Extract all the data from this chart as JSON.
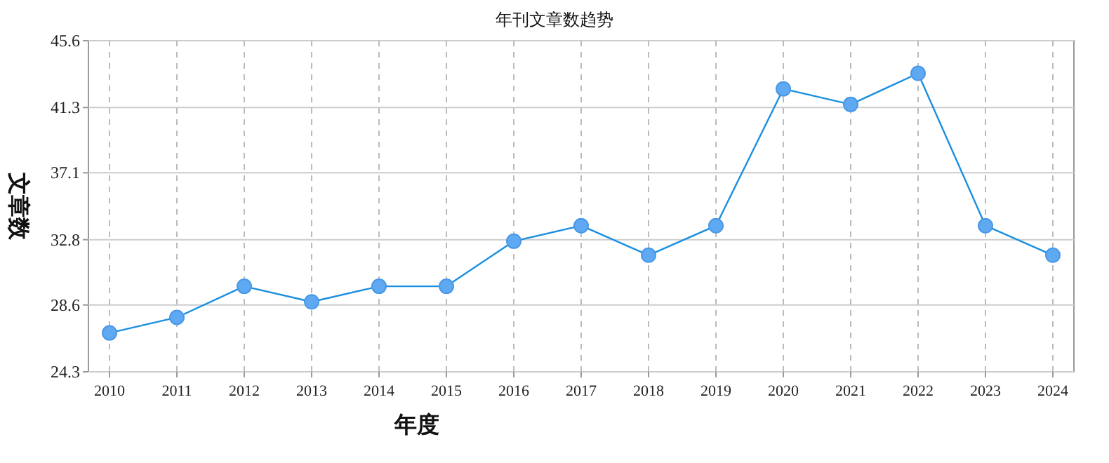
{
  "chart_data": {
    "type": "line",
    "title": "年刊文章数趋势",
    "xlabel": "年度",
    "ylabel": "文章数",
    "categories": [
      "2010",
      "2011",
      "2012",
      "2013",
      "2014",
      "2015",
      "2016",
      "2017",
      "2018",
      "2019",
      "2020",
      "2021",
      "2022",
      "2023",
      "2024"
    ],
    "series": [
      {
        "color": "#1a8fe0",
        "values": [
          26.8,
          27.8,
          29.8,
          28.8,
          29.8,
          29.8,
          32.7,
          33.7,
          31.8,
          33.7,
          42.5,
          41.5,
          43.5,
          33.7,
          31.8
        ]
      }
    ],
    "ylim": [
      24.3,
      45.6
    ],
    "yticks": [
      24.3,
      28.6,
      32.8,
      37.1,
      41.3,
      45.6
    ],
    "grid": true,
    "marker": "circle"
  }
}
